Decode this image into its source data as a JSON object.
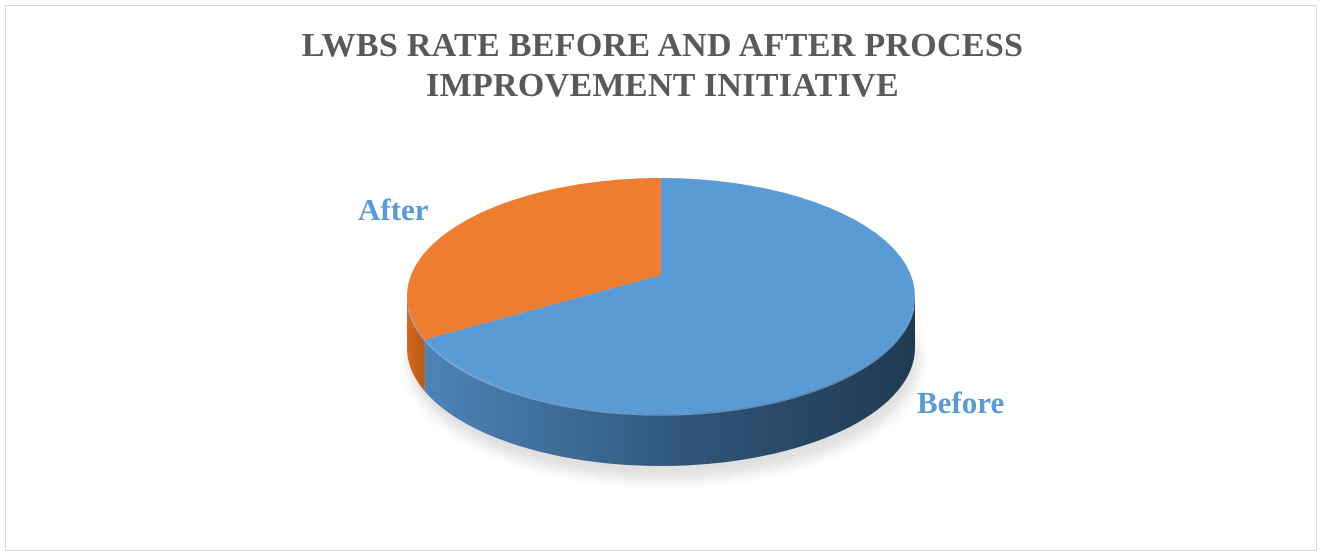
{
  "chart_data": {
    "type": "pie",
    "style": "3d",
    "title_lines": [
      "LWBS RATE BEFORE AND AFTER PROCESS",
      "IMPROVEMENT INITIATIVE"
    ],
    "categories": [
      "Before",
      "After"
    ],
    "values": [
      69,
      31
    ],
    "colors": {
      "Before": "#5b9bd5",
      "After": "#ed7d31"
    },
    "legend": "none",
    "data_labels": "category names"
  }
}
